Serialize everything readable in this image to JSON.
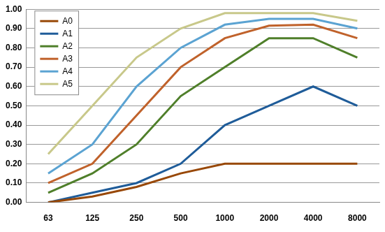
{
  "chart_data": {
    "type": "line",
    "categories": [
      "63",
      "125",
      "250",
      "500",
      "1000",
      "2000",
      "4000",
      "8000"
    ],
    "series": [
      {
        "name": "A0",
        "color": "#984807",
        "values": [
          0.0,
          0.03,
          0.08,
          0.15,
          0.2,
          0.2,
          0.2,
          0.2
        ]
      },
      {
        "name": "A1",
        "color": "#1f5c99",
        "values": [
          0.0,
          0.05,
          0.1,
          0.2,
          0.4,
          0.5,
          0.6,
          0.5
        ]
      },
      {
        "name": "A2",
        "color": "#4f7f2a",
        "values": [
          0.05,
          0.15,
          0.3,
          0.55,
          0.7,
          0.85,
          0.85,
          0.75
        ]
      },
      {
        "name": "A3",
        "color": "#c0622b",
        "values": [
          0.1,
          0.2,
          0.45,
          0.7,
          0.85,
          0.915,
          0.92,
          0.85
        ]
      },
      {
        "name": "A4",
        "color": "#5ba3d2",
        "values": [
          0.15,
          0.3,
          0.6,
          0.8,
          0.92,
          0.95,
          0.95,
          0.9
        ]
      },
      {
        "name": "A5",
        "color": "#c8c88a",
        "values": [
          0.25,
          0.5,
          0.75,
          0.9,
          0.98,
          0.98,
          0.98,
          0.94
        ]
      }
    ],
    "ylim": [
      0,
      1
    ],
    "yticks": [
      {
        "value": 0,
        "label": "0.00"
      },
      {
        "value": 0.1,
        "label": "0.10"
      },
      {
        "value": 0.2,
        "label": "0.20"
      },
      {
        "value": 0.3,
        "label": "0.30"
      },
      {
        "value": 0.4,
        "label": "0.40"
      },
      {
        "value": 0.5,
        "label": "0.50"
      },
      {
        "value": 0.6,
        "label": "0.60"
      },
      {
        "value": 0.7,
        "label": "0.70"
      },
      {
        "value": 0.8,
        "label": "0.80"
      },
      {
        "value": 0.9,
        "label": "0.90"
      },
      {
        "value": 1,
        "label": "1.00"
      }
    ],
    "grid": true,
    "legend": "upper left"
  }
}
